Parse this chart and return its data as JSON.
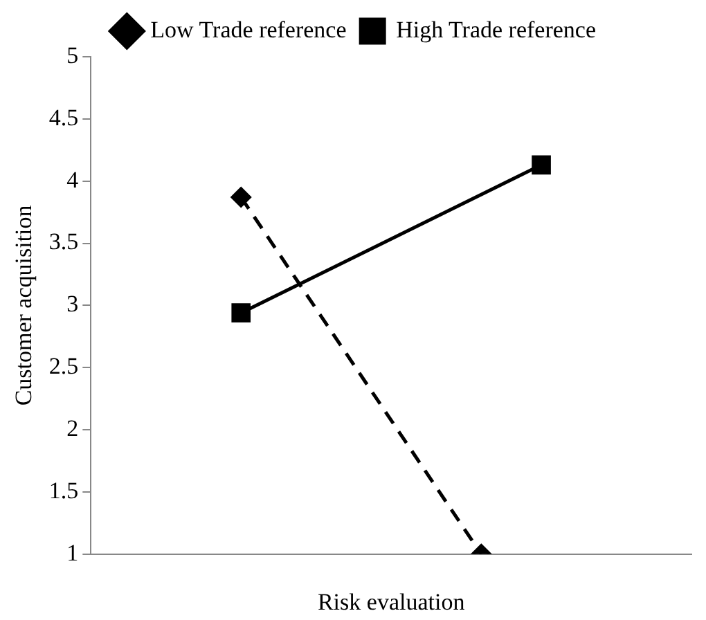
{
  "chart_data": {
    "type": "line",
    "xlabel": "Risk evaluation",
    "ylabel": "Customer acquisition",
    "categories": [
      null,
      null,
      null,
      null,
      null,
      null,
      null,
      null,
      null,
      null
    ],
    "ylim": [
      1,
      5
    ],
    "yticks": [
      1,
      1.5,
      2,
      2.5,
      3,
      3.5,
      4,
      4.5,
      5
    ],
    "grid": false,
    "legend": "top",
    "series": [
      {
        "name": "Low Trade reference",
        "color": "#000000",
        "values": [
          null,
          null,
          3.87,
          null,
          null,
          null,
          1,
          null,
          null,
          null
        ],
        "marker": "diamond",
        "line_style": "dashed"
      },
      {
        "name": "High Trade reference",
        "color": "#000000",
        "values": [
          null,
          null,
          2.94,
          null,
          null,
          null,
          null,
          4.13,
          null,
          null
        ],
        "marker": "square",
        "line_style": "solid"
      }
    ]
  }
}
